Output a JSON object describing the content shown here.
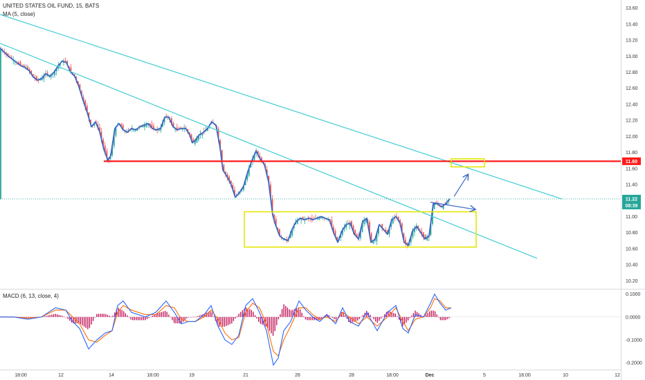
{
  "header": {
    "symbol_line": "UNITED STATES OIL FUND, 15, BATS",
    "ma_line": "MA (5, close)",
    "macd_line": "MACD (6, 13, close, 4)"
  },
  "colors": {
    "trendline": "#4dd0d6",
    "resistance": "#ff1a1a",
    "box": "#e6e600",
    "price_line": "#3a67c4",
    "up_candle": "#26a69a",
    "down_candle": "#ef5350",
    "macd_line": "#2962ff",
    "signal_line": "#ff6d00",
    "histogram": "#c2185b",
    "price_badge": "#26a69a",
    "resistance_badge": "#ff1a1a"
  },
  "chart_data": [
    {
      "type": "candlestick",
      "title": "UNITED STATES OIL FUND, 15, BATS",
      "x_ticks": [
        "18:00",
        "12",
        "14",
        "18:00",
        "19",
        "21",
        "26",
        "28",
        "18:00",
        "Dec",
        "5",
        "18:00",
        "10",
        "12"
      ],
      "y_ticks": [
        "13.60",
        "13.40",
        "13.20",
        "13.00",
        "12.80",
        "12.60",
        "12.40",
        "12.20",
        "12.00",
        "11.80",
        "11.60",
        "11.40",
        "11.20",
        "11.00",
        "10.80",
        "10.60",
        "10.40",
        "10.20"
      ],
      "ylim": [
        10.1,
        13.7
      ],
      "close_path": [
        [
          0,
          13.1
        ],
        [
          6,
          13.05
        ],
        [
          12,
          13.0
        ],
        [
          18,
          12.96
        ],
        [
          24,
          12.92
        ],
        [
          30,
          12.88
        ],
        [
          36,
          12.86
        ],
        [
          42,
          12.82
        ],
        [
          48,
          12.74
        ],
        [
          54,
          12.7
        ],
        [
          60,
          12.72
        ],
        [
          66,
          12.78
        ],
        [
          72,
          12.75
        ],
        [
          78,
          12.8
        ],
        [
          84,
          12.88
        ],
        [
          90,
          12.94
        ],
        [
          96,
          12.92
        ],
        [
          102,
          12.8
        ],
        [
          108,
          12.75
        ],
        [
          114,
          12.62
        ],
        [
          120,
          12.45
        ],
        [
          126,
          12.3
        ],
        [
          132,
          12.12
        ],
        [
          138,
          12.18
        ],
        [
          144,
          12.06
        ],
        [
          150,
          11.84
        ],
        [
          156,
          11.7
        ],
        [
          160,
          11.76
        ],
        [
          166,
          12.1
        ],
        [
          172,
          12.16
        ],
        [
          178,
          12.08
        ],
        [
          184,
          12.05
        ],
        [
          190,
          12.1
        ],
        [
          196,
          12.08
        ],
        [
          202,
          12.12
        ],
        [
          208,
          12.14
        ],
        [
          214,
          12.16
        ],
        [
          220,
          12.1
        ],
        [
          226,
          12.08
        ],
        [
          232,
          12.1
        ],
        [
          238,
          12.24
        ],
        [
          244,
          12.24
        ],
        [
          250,
          12.12
        ],
        [
          256,
          12.08
        ],
        [
          262,
          12.1
        ],
        [
          268,
          12.1
        ],
        [
          274,
          12.02
        ],
        [
          278,
          11.92
        ],
        [
          282,
          11.95
        ],
        [
          288,
          12.02
        ],
        [
          294,
          12.05
        ],
        [
          300,
          12.1
        ],
        [
          306,
          12.18
        ],
        [
          312,
          12.14
        ],
        [
          318,
          11.86
        ],
        [
          322,
          11.58
        ],
        [
          328,
          11.5
        ],
        [
          334,
          11.4
        ],
        [
          340,
          11.24
        ],
        [
          346,
          11.3
        ],
        [
          352,
          11.38
        ],
        [
          358,
          11.56
        ],
        [
          364,
          11.7
        ],
        [
          370,
          11.82
        ],
        [
          376,
          11.72
        ],
        [
          382,
          11.65
        ],
        [
          388,
          11.44
        ],
        [
          394,
          11.02
        ],
        [
          398,
          10.9
        ],
        [
          404,
          10.76
        ],
        [
          410,
          10.72
        ],
        [
          416,
          10.7
        ],
        [
          422,
          10.84
        ],
        [
          428,
          10.94
        ],
        [
          434,
          10.98
        ],
        [
          440,
          10.96
        ],
        [
          446,
          10.98
        ],
        [
          452,
          10.96
        ],
        [
          458,
          10.98
        ],
        [
          464,
          11.0
        ],
        [
          470,
          10.98
        ],
        [
          476,
          10.96
        ],
        [
          482,
          10.8
        ],
        [
          488,
          10.68
        ],
        [
          494,
          10.82
        ],
        [
          500,
          10.9
        ],
        [
          506,
          10.92
        ],
        [
          512,
          10.78
        ],
        [
          518,
          10.72
        ],
        [
          524,
          10.94
        ],
        [
          530,
          10.98
        ],
        [
          536,
          10.68
        ],
        [
          542,
          10.72
        ],
        [
          548,
          10.9
        ],
        [
          554,
          10.84
        ],
        [
          560,
          10.78
        ],
        [
          566,
          10.96
        ],
        [
          572,
          11.0
        ],
        [
          578,
          10.92
        ],
        [
          584,
          10.68
        ],
        [
          590,
          10.64
        ],
        [
          596,
          10.82
        ],
        [
          602,
          10.88
        ],
        [
          608,
          10.8
        ],
        [
          614,
          10.72
        ],
        [
          620,
          10.76
        ],
        [
          626,
          11.16
        ],
        [
          632,
          11.16
        ],
        [
          638,
          11.12
        ],
        [
          644,
          11.16
        ],
        [
          650,
          11.22
        ]
      ],
      "lines": [
        {
          "name": "Upper trendline",
          "points": [
            [
              0,
              13.52
            ],
            [
              812,
              11.22
            ]
          ]
        },
        {
          "name": "Lower trendline",
          "points": [
            [
              0,
              13.16
            ],
            [
              776,
              10.48
            ]
          ]
        },
        {
          "name": "Resistance",
          "value": 11.69
        }
      ],
      "annotations": [
        {
          "type": "range-box",
          "x": [
            353,
            688
          ],
          "y": [
            10.62,
            11.06
          ]
        },
        {
          "type": "target-box",
          "x": [
            652,
            700
          ],
          "y": [
            11.62,
            11.72
          ]
        },
        {
          "type": "arrow",
          "from": [
            656,
            11.25
          ],
          "to": [
            676,
            11.52
          ]
        },
        {
          "type": "arrow",
          "from": [
            622,
            11.18
          ],
          "to": [
            686,
            11.09
          ]
        }
      ],
      "last_price": 11.22,
      "last_price_label": "11.22",
      "countdown": "08:39",
      "resistance_label": "11.69"
    },
    {
      "type": "line",
      "title": "MACD (6, 13, close, 4)",
      "y_ticks": [
        "0.1000",
        "0.0000",
        "-0.1000",
        "-0.2000"
      ],
      "ylim": [
        -0.23,
        0.12
      ],
      "series": [
        {
          "name": "MACD",
          "values": [
            [
              0,
              0.0
            ],
            [
              20,
              0.0
            ],
            [
              40,
              -0.01
            ],
            [
              60,
              0.0
            ],
            [
              80,
              0.04
            ],
            [
              95,
              0.03
            ],
            [
              105,
              -0.02
            ],
            [
              115,
              -0.05
            ],
            [
              128,
              -0.14
            ],
            [
              140,
              -0.1
            ],
            [
              152,
              -0.07
            ],
            [
              162,
              -0.06
            ],
            [
              170,
              0.05
            ],
            [
              178,
              0.07
            ],
            [
              190,
              0.02
            ],
            [
              210,
              0.0
            ],
            [
              225,
              0.02
            ],
            [
              240,
              0.07
            ],
            [
              252,
              0.02
            ],
            [
              262,
              -0.03
            ],
            [
              272,
              -0.02
            ],
            [
              282,
              -0.02
            ],
            [
              295,
              0.01
            ],
            [
              305,
              0.05
            ],
            [
              315,
              -0.04
            ],
            [
              325,
              -0.1
            ],
            [
              335,
              -0.12
            ],
            [
              345,
              -0.08
            ],
            [
              355,
              0.05
            ],
            [
              365,
              0.08
            ],
            [
              375,
              0.02
            ],
            [
              385,
              -0.06
            ],
            [
              395,
              -0.21
            ],
            [
              402,
              -0.18
            ],
            [
              410,
              -0.06
            ],
            [
              420,
              -0.02
            ],
            [
              432,
              0.07
            ],
            [
              442,
              0.03
            ],
            [
              452,
              0.0
            ],
            [
              462,
              -0.02
            ],
            [
              472,
              0.01
            ],
            [
              485,
              -0.03
            ],
            [
              495,
              0.04
            ],
            [
              505,
              -0.02
            ],
            [
              518,
              -0.04
            ],
            [
              530,
              0.02
            ],
            [
              545,
              -0.06
            ],
            [
              560,
              0.02
            ],
            [
              572,
              0.05
            ],
            [
              582,
              -0.05
            ],
            [
              590,
              -0.07
            ],
            [
              600,
              0.01
            ],
            [
              612,
              0.0
            ],
            [
              622,
              0.06
            ],
            [
              628,
              0.1
            ],
            [
              636,
              0.06
            ],
            [
              644,
              0.03
            ],
            [
              652,
              0.04
            ]
          ]
        },
        {
          "name": "Signal",
          "values": [
            [
              0,
              0.0
            ],
            [
              20,
              0.0
            ],
            [
              40,
              -0.005
            ],
            [
              60,
              0.0
            ],
            [
              80,
              0.03
            ],
            [
              95,
              0.03
            ],
            [
              105,
              0.0
            ],
            [
              115,
              -0.03
            ],
            [
              128,
              -0.1
            ],
            [
              140,
              -0.11
            ],
            [
              152,
              -0.08
            ],
            [
              162,
              -0.06
            ],
            [
              170,
              0.02
            ],
            [
              178,
              0.05
            ],
            [
              190,
              0.03
            ],
            [
              210,
              0.01
            ],
            [
              225,
              0.01
            ],
            [
              240,
              0.05
            ],
            [
              252,
              0.04
            ],
            [
              262,
              -0.01
            ],
            [
              272,
              -0.02
            ],
            [
              282,
              -0.02
            ],
            [
              295,
              0.0
            ],
            [
              305,
              0.03
            ],
            [
              315,
              -0.01
            ],
            [
              325,
              -0.07
            ],
            [
              335,
              -0.1
            ],
            [
              345,
              -0.09
            ],
            [
              355,
              0.02
            ],
            [
              365,
              0.06
            ],
            [
              375,
              0.04
            ],
            [
              385,
              -0.03
            ],
            [
              395,
              -0.15
            ],
            [
              402,
              -0.17
            ],
            [
              410,
              -0.1
            ],
            [
              420,
              -0.04
            ],
            [
              432,
              0.04
            ],
            [
              442,
              0.04
            ],
            [
              452,
              0.01
            ],
            [
              462,
              -0.01
            ],
            [
              472,
              0.0
            ],
            [
              485,
              -0.02
            ],
            [
              495,
              0.02
            ],
            [
              505,
              0.0
            ],
            [
              518,
              -0.03
            ],
            [
              530,
              0.0
            ],
            [
              545,
              -0.04
            ],
            [
              560,
              0.0
            ],
            [
              572,
              0.04
            ],
            [
              582,
              -0.02
            ],
            [
              590,
              -0.06
            ],
            [
              600,
              -0.01
            ],
            [
              612,
              0.0
            ],
            [
              622,
              0.04
            ],
            [
              628,
              0.08
            ],
            [
              636,
              0.07
            ],
            [
              644,
              0.04
            ],
            [
              652,
              0.04
            ]
          ]
        }
      ]
    }
  ]
}
